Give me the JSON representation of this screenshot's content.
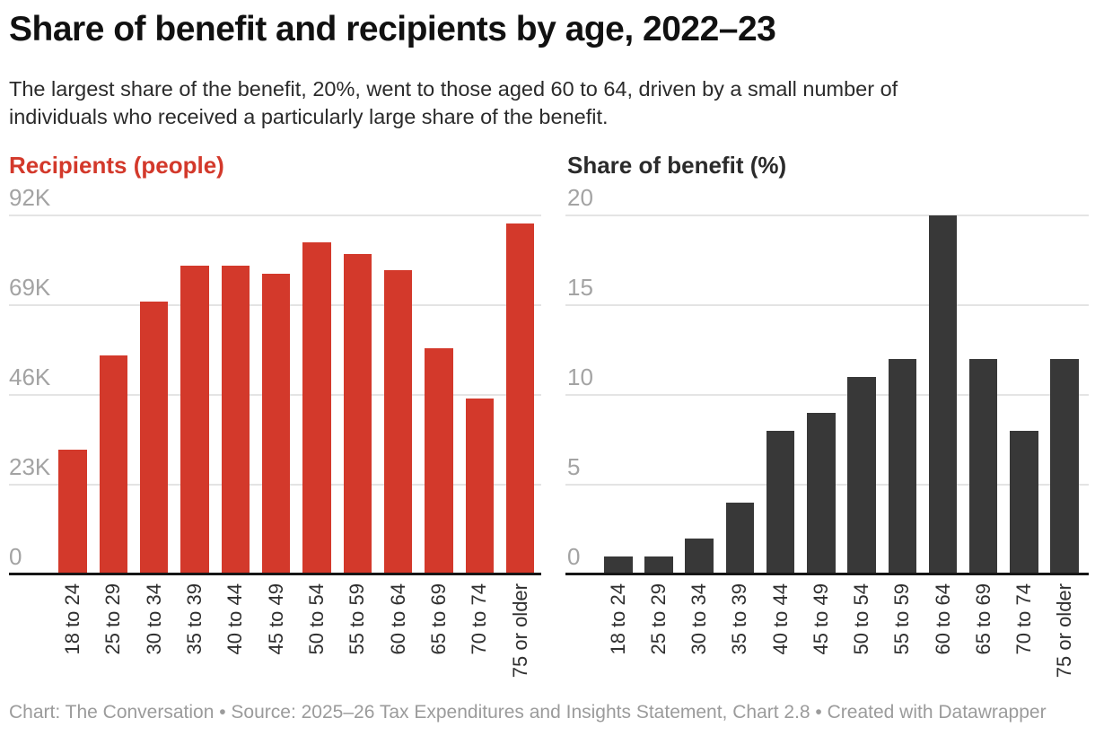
{
  "header": {
    "title": "Share of benefit and recipients by age, 2022–23",
    "subtitle_lines": [
      "The largest share of the benefit, 20%, went to those aged 60 to 64, driven by a small number of",
      "individuals who received a particularly large share of the benefit."
    ]
  },
  "footer": {
    "text": "Chart: The Conversation • Source: 2025–26 Tax Expenditures and Insights Statement, Chart 2.8 • Created with Datawrapper"
  },
  "colors": {
    "accent_red": "#d3392b",
    "dark_bar": "#383838",
    "gridline": "#e4e4e4",
    "axis_number_label": "#a3a3a3",
    "category_label": "#2f2f2f",
    "baseline": "#161616",
    "title_text": "#111111",
    "subtitle_text": "#2b2b2b",
    "footer_text": "#9b9b9b",
    "background": "#ffffff"
  },
  "chart_data": [
    {
      "type": "bar",
      "title": "Recipients (people)",
      "title_color": "#d3392b",
      "bar_color": "#d3392b",
      "legend_position": "none",
      "grid": true,
      "categories": [
        "18 to 24",
        "25 to 29",
        "30 to 34",
        "35 to 39",
        "40 to 44",
        "45 to 49",
        "50 to 54",
        "55 to 59",
        "60 to 64",
        "65 to 69",
        "70 to 74",
        "75 or older"
      ],
      "values": [
        32000,
        56000,
        70000,
        79000,
        79000,
        77000,
        85000,
        82000,
        78000,
        58000,
        45000,
        90000
      ],
      "xlabel": "",
      "ylabel": "Recipients (people)",
      "ylim": [
        0,
        92000
      ],
      "y_ticks": [
        {
          "value": 92000,
          "label": "92K"
        },
        {
          "value": 69000,
          "label": "69K"
        },
        {
          "value": 46000,
          "label": "46K"
        },
        {
          "value": 23000,
          "label": "23K"
        },
        {
          "value": 0,
          "label": "0"
        }
      ]
    },
    {
      "type": "bar",
      "title": "Share of benefit (%)",
      "title_color": "#2b2b2b",
      "bar_color": "#383838",
      "legend_position": "none",
      "grid": true,
      "categories": [
        "18 to 24",
        "25 to 29",
        "30 to 34",
        "35 to 39",
        "40 to 44",
        "45 to 49",
        "50 to 54",
        "55 to 59",
        "60 to 64",
        "65 to 69",
        "70 to 74",
        "75 or older"
      ],
      "values": [
        1,
        1,
        2,
        4,
        8,
        9,
        11,
        12,
        20,
        12,
        8,
        12
      ],
      "xlabel": "",
      "ylabel": "Share of benefit (%)",
      "ylim": [
        0,
        20
      ],
      "y_ticks": [
        {
          "value": 20,
          "label": "20"
        },
        {
          "value": 15,
          "label": "15"
        },
        {
          "value": 10,
          "label": "10"
        },
        {
          "value": 5,
          "label": "5"
        },
        {
          "value": 0,
          "label": "0"
        }
      ]
    }
  ]
}
